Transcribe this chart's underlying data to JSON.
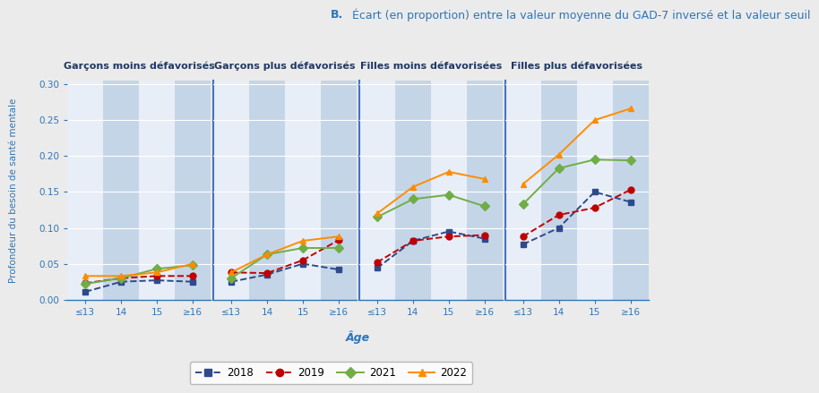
{
  "title_B": "B.",
  "title_rest": " Écart (en proportion) entre la valeur moyenne du GAD-7 inversé et la valeur seuil",
  "panels": [
    "Garçons moins défavorisés",
    "Garçons plus défavorisés",
    "Filles moins défavorisées",
    "Filles plus défavorisées"
  ],
  "x_labels": [
    "≤13",
    "14",
    "15",
    "≥16"
  ],
  "xlabel": "Âge",
  "ylabel": "Profondeur du besoin de santé mentale",
  "ylim": [
    0.0,
    0.305
  ],
  "yticks": [
    0.0,
    0.05,
    0.1,
    0.15,
    0.2,
    0.25,
    0.3
  ],
  "series": {
    "2018": {
      "color": "#2E4A8C",
      "linestyle": "--",
      "marker": "s",
      "markersize": 5,
      "values": [
        [
          0.011,
          0.025,
          0.027,
          0.025
        ],
        [
          0.025,
          0.035,
          0.05,
          0.042
        ],
        [
          0.044,
          0.082,
          0.095,
          0.085
        ],
        [
          0.077,
          0.1,
          0.15,
          0.136
        ]
      ]
    },
    "2019": {
      "color": "#C00000",
      "linestyle": "--",
      "marker": "o",
      "markersize": 5,
      "values": [
        [
          0.023,
          0.03,
          0.033,
          0.033
        ],
        [
          0.038,
          0.037,
          0.055,
          0.083
        ],
        [
          0.052,
          0.082,
          0.088,
          0.09
        ],
        [
          0.088,
          0.118,
          0.128,
          0.153
        ]
      ]
    },
    "2021": {
      "color": "#70AD47",
      "linestyle": "-",
      "marker": "D",
      "markersize": 5,
      "values": [
        [
          0.022,
          0.03,
          0.043,
          0.048
        ],
        [
          0.03,
          0.063,
          0.072,
          0.072
        ],
        [
          0.115,
          0.14,
          0.146,
          0.13
        ],
        [
          0.133,
          0.183,
          0.195,
          0.194
        ]
      ]
    },
    "2022": {
      "color": "#FF8C00",
      "linestyle": "-",
      "marker": "^",
      "markersize": 5,
      "values": [
        [
          0.033,
          0.033,
          0.038,
          0.05
        ],
        [
          0.038,
          0.063,
          0.082,
          0.088
        ],
        [
          0.12,
          0.157,
          0.178,
          0.168
        ],
        [
          0.161,
          0.202,
          0.25,
          0.266
        ]
      ]
    }
  },
  "outer_bg": "#EBEBEB",
  "plot_area_bg": "#DCE6F1",
  "stripe_light": "#E8EEF7",
  "stripe_dark": "#C5D5E8",
  "title_color": "#2E75B6",
  "panel_title_color": "#1F3864",
  "axis_label_color": "#2E75B6",
  "tick_color": "#2E75B6",
  "separator_color": "#4472C4",
  "bottom_axis_color": "#2E75B6",
  "grid_color": "#FFFFFF"
}
